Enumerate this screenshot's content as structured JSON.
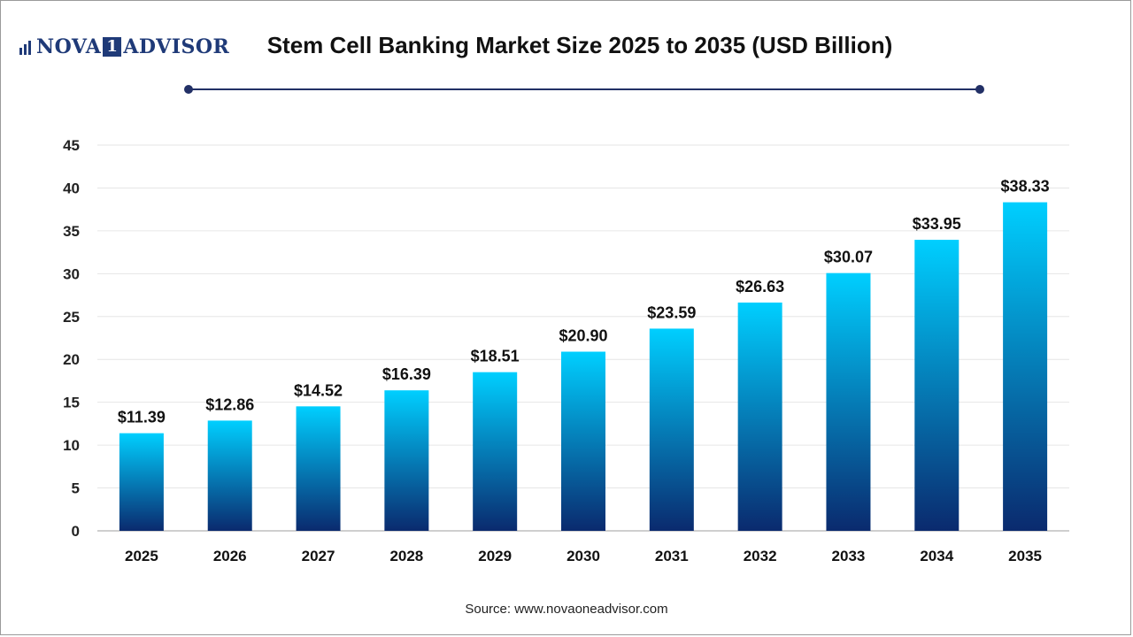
{
  "brand": {
    "left": "NOVA",
    "mark": "1",
    "right": "ADVISOR",
    "color": "#1f3a78"
  },
  "source": "Source: www.novaoneadvisor.com",
  "chart_data": {
    "type": "bar",
    "title": "Stem Cell Banking Market Size 2025 to 2035 (USD Billion)",
    "xlabel": "",
    "ylabel": "",
    "categories": [
      "2025",
      "2026",
      "2027",
      "2028",
      "2029",
      "2030",
      "2031",
      "2032",
      "2033",
      "2034",
      "2035"
    ],
    "values": [
      11.39,
      12.86,
      14.52,
      16.39,
      18.51,
      20.9,
      23.59,
      26.63,
      30.07,
      33.95,
      38.33
    ],
    "value_labels": [
      "$11.39",
      "$12.86",
      "$14.52",
      "$16.39",
      "$18.51",
      "$20.90",
      "$23.59",
      "$26.63",
      "$30.07",
      "$33.95",
      "$38.33"
    ],
    "ylim": [
      0,
      45
    ],
    "yticks": [
      0,
      5,
      10,
      15,
      20,
      25,
      30,
      35,
      40,
      45
    ],
    "grid": true,
    "legend": "none",
    "colors": {
      "bar_top": "#00cfff",
      "bar_bottom": "#0a2a6e",
      "grid": "#e6e6e6",
      "axis": "#bfbfbf"
    }
  }
}
